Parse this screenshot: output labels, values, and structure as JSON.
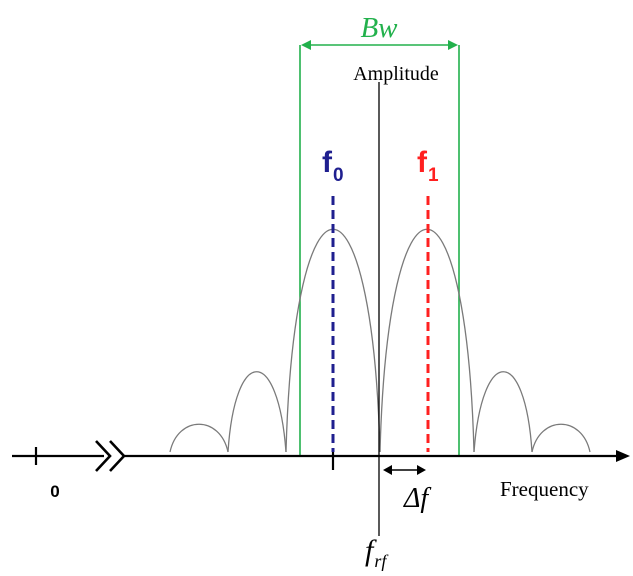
{
  "labels": {
    "bandwidth": "Bw",
    "amplitude": "Amplitude",
    "f0": {
      "base": "f",
      "sub": "0"
    },
    "f1": {
      "base": "f",
      "sub": "1"
    },
    "origin": "0",
    "frequency": "Frequency",
    "delta": "Δf",
    "frf": {
      "base": "f",
      "sub": "rf"
    }
  },
  "colors": {
    "axis": "#000000",
    "curve": "#7a7a7a",
    "bandwidth": "#22b14c",
    "f0": "#1f1f8f",
    "f1": "#ff2020"
  }
}
